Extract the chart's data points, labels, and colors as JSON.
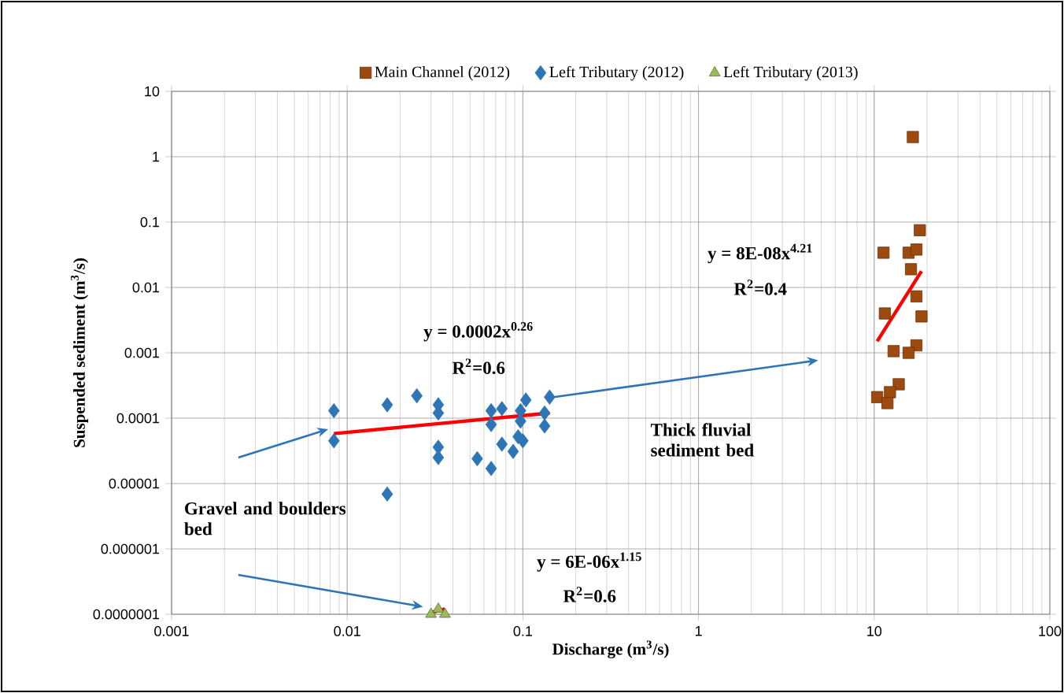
{
  "chart_data": {
    "type": "scatter",
    "xlabel": "Discharge (m$^{3}$/s)",
    "ylabel": "Suspended sediment (m$^{3}$/s)",
    "log": "xy",
    "grid": true,
    "legend": "top",
    "xlim": [
      0.001,
      100
    ],
    "xticks": [
      0.001,
      0.01,
      0.1,
      1,
      10,
      100
    ],
    "ylim": [
      1e-07,
      10
    ],
    "yticks": [
      10,
      1,
      0.1,
      0.01,
      0.001,
      0.0001,
      {
        "value": 1e-05,
        "label": "0.00001"
      },
      {
        "value": 1e-06,
        "label": "0.000001"
      },
      {
        "value": 1e-07,
        "label": "0.0000001"
      }
    ],
    "series": [
      {
        "name": "Main Channel (2012)",
        "color": "#9c4a0e",
        "marker": "square",
        "x": [
          16.6,
          18.2,
          11.3,
          15.7,
          17.4,
          16.2,
          17.4,
          11.5,
          18.6,
          17.4,
          12.9,
          15.7,
          13.8,
          10.4,
          12.3,
          11.9
        ],
        "values": [
          2,
          0.075,
          0.034,
          0.034,
          0.038,
          0.019,
          0.0073,
          0.004,
          0.0036,
          0.0013,
          0.00106,
          0.001,
          0.00033,
          0.00021,
          0.00025,
          0.00017
        ]
      },
      {
        "name": "Left Tributary (2012)",
        "color": "#2e75b6",
        "marker": "diamond",
        "x": [
          0.0084,
          0.0084,
          0.0169,
          0.0169,
          0.0249,
          0.033,
          0.033,
          0.033,
          0.033,
          0.055,
          0.066,
          0.066,
          0.066,
          0.076,
          0.076,
          0.088,
          0.094,
          0.1,
          0.097,
          0.104,
          0.097,
          0.133,
          0.142,
          0.133
        ],
        "values": [
          0.00013,
          4.5e-05,
          0.00016,
          6.9e-06,
          0.00022,
          0.00016,
          0.00012,
          3.6e-05,
          2.5e-05,
          2.4e-05,
          1.7e-05,
          0.00013,
          8e-05,
          0.00014,
          4e-05,
          3.1e-05,
          5.2e-05,
          4.5e-05,
          9e-05,
          0.00019,
          0.00013,
          7.6e-05,
          0.00021,
          0.00012
        ]
      },
      {
        "name": "Left Tributary (2013)",
        "color": "#9bbb59",
        "marker": "triangle",
        "x": [
          0.03,
          0.033,
          0.036
        ],
        "values": [
          1e-07,
          1.2e-07,
          1e-07
        ]
      },
      {
        "type": "line",
        "color": "#ff0000",
        "x": [
          0.0084,
          0.142
        ],
        "values": [
          5.8e-05,
          0.00012
        ]
      },
      {
        "type": "line",
        "color": "#ff0000",
        "x": [
          10.4,
          18.6
        ],
        "values": [
          0.0015,
          0.0177
        ]
      },
      {
        "type": "line",
        "color": "#ff0000",
        "x": [
          0.03,
          0.036
        ],
        "values": [
          1.06e-07,
          1.2e-07
        ]
      }
    ],
    "annotations": [
      "y = 0.0002x$^{0.26}$",
      "R$^{2}$=0.6",
      "y = 8E-08x$^{4.21}$",
      "R$^{2}$=0.4",
      "y = 6E-06x$^{1.15}$",
      "R$^{2}$=0.6",
      "Gravel and boulders bed",
      "Thick fluvial sediment bed"
    ]
  }
}
